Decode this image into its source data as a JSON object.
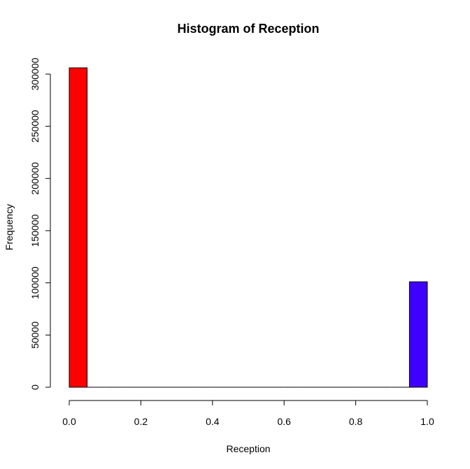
{
  "chart_data": {
    "type": "bar",
    "title": "Histogram of Reception",
    "xlabel": "Reception",
    "ylabel": "Frequency",
    "xlim": [
      0,
      1
    ],
    "ylim": [
      0,
      300000
    ],
    "x_ticks": [
      "0.0",
      "0.2",
      "0.4",
      "0.6",
      "0.8",
      "1.0"
    ],
    "y_ticks": [
      "0",
      "50000",
      "100000",
      "150000",
      "200000",
      "250000",
      "300000"
    ],
    "bins": [
      {
        "start": 0.0,
        "end": 0.05,
        "value": 306000,
        "color": "#ff0000"
      },
      {
        "start": 0.05,
        "end": 0.1,
        "value": 0,
        "color": "#ff0000"
      },
      {
        "start": 0.1,
        "end": 0.15,
        "value": 0,
        "color": "#ff0000"
      },
      {
        "start": 0.15,
        "end": 0.2,
        "value": 0,
        "color": "#ff0000"
      },
      {
        "start": 0.2,
        "end": 0.25,
        "value": 0,
        "color": "#ff0000"
      },
      {
        "start": 0.25,
        "end": 0.3,
        "value": 0,
        "color": "#ff0000"
      },
      {
        "start": 0.3,
        "end": 0.35,
        "value": 0,
        "color": "#ff0000"
      },
      {
        "start": 0.35,
        "end": 0.4,
        "value": 0,
        "color": "#ff0000"
      },
      {
        "start": 0.4,
        "end": 0.45,
        "value": 0,
        "color": "#ff0000"
      },
      {
        "start": 0.45,
        "end": 0.5,
        "value": 0,
        "color": "#ff0000"
      },
      {
        "start": 0.5,
        "end": 0.55,
        "value": 0,
        "color": "#ff0000"
      },
      {
        "start": 0.55,
        "end": 0.6,
        "value": 0,
        "color": "#ff0000"
      },
      {
        "start": 0.6,
        "end": 0.65,
        "value": 0,
        "color": "#ff0000"
      },
      {
        "start": 0.65,
        "end": 0.7,
        "value": 0,
        "color": "#ff0000"
      },
      {
        "start": 0.7,
        "end": 0.75,
        "value": 0,
        "color": "#ff0000"
      },
      {
        "start": 0.75,
        "end": 0.8,
        "value": 0,
        "color": "#ff0000"
      },
      {
        "start": 0.8,
        "end": 0.85,
        "value": 0,
        "color": "#ff0000"
      },
      {
        "start": 0.85,
        "end": 0.9,
        "value": 0,
        "color": "#ff0000"
      },
      {
        "start": 0.9,
        "end": 0.95,
        "value": 0,
        "color": "#ff0000"
      },
      {
        "start": 0.95,
        "end": 1.0,
        "value": 101000,
        "color": "#3f00ff"
      }
    ],
    "grid": false
  }
}
